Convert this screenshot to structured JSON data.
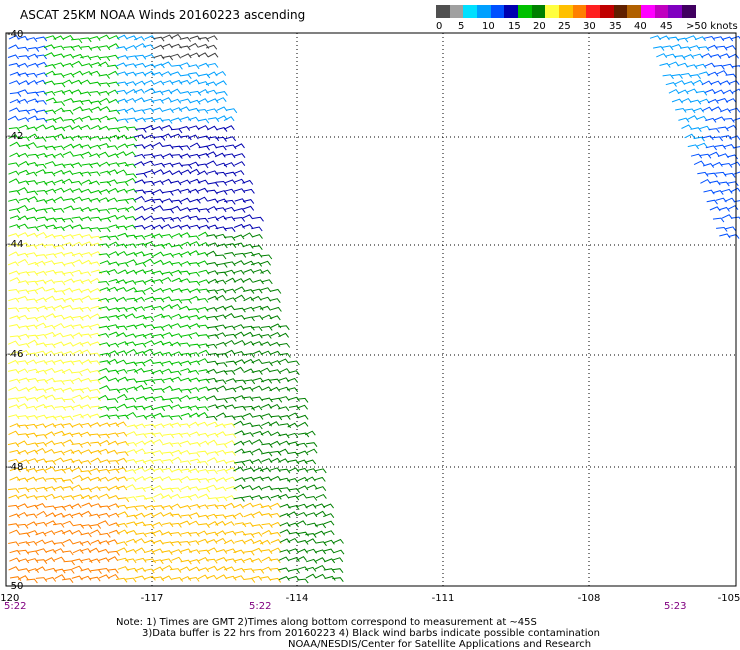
{
  "title": "ASCAT 25KM NOAA Winds 20160223 ascending",
  "legend": {
    "labels": [
      "0",
      "5",
      "10",
      "15",
      "20",
      "25",
      "30",
      "35",
      "40",
      "45",
      ">50 knots"
    ],
    "colors": [
      "#505050",
      "#a0a0a0",
      "#00e0ff",
      "#00a0ff",
      "#0050ff",
      "#0000b0",
      "#00c000",
      "#008000",
      "#ffff40",
      "#ffc000",
      "#ff8000",
      "#ff2020",
      "#c00000",
      "#602000",
      "#b06000",
      "#ff00ff",
      "#c000c0",
      "#8000c0",
      "#400060"
    ]
  },
  "map": {
    "x_ticks": [
      "-120",
      "-117",
      "-114",
      "-111",
      "-108",
      "-105"
    ],
    "y_ticks": [
      "-40",
      "-42",
      "-44",
      "-46",
      "-48",
      "-50"
    ],
    "time_labels": [
      "5:22",
      "5:22",
      "5:23"
    ],
    "time_label_color": "#800080"
  },
  "notes": [
    "Note: 1) Times are GMT 2)Times along bottom correspond to measurement at ~45S",
    "3)Data buffer is 22 hrs from 20160223 4) Black wind barbs indicate possible contamination",
    "NOAA/NESDIS/Center for Satellite Applications and Research"
  ]
}
